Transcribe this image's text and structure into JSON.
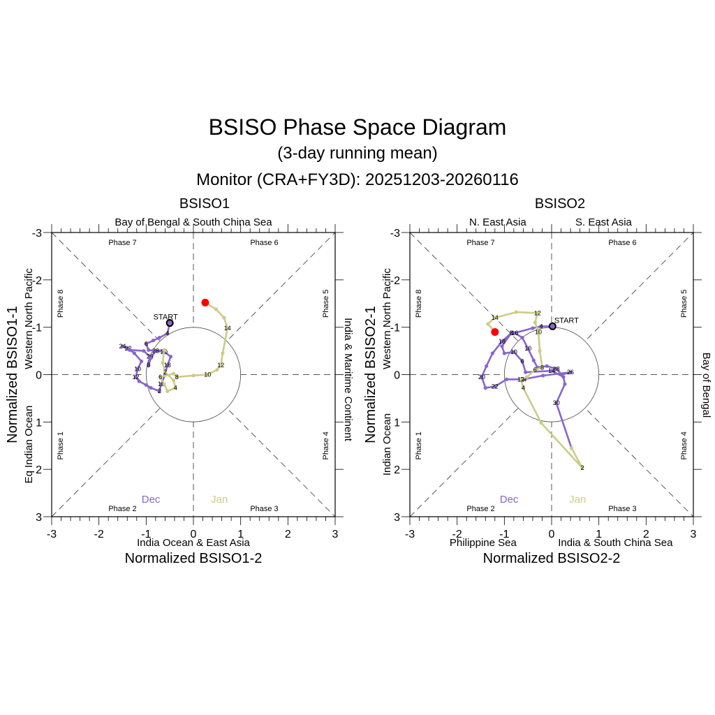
{
  "header": {
    "title": "BSISO Phase Space Diagram",
    "subtitle": "(3-day running mean)",
    "monitor": "Monitor (CRA+FY3D): 20251203-20260116"
  },
  "colors": {
    "dec": "#8866cc",
    "jan": "#cccc88",
    "end": "#ff0000",
    "start": "#000000"
  },
  "chart_data": [
    {
      "type": "scatter",
      "title": "BSISO1",
      "xlabel": "Normalized BSISO1-2",
      "ylabel": "Normalized BSISO1-1",
      "xlim": [
        -3,
        3
      ],
      "ylim": [
        -3,
        3
      ],
      "y_inverted": true,
      "xticks": [
        "-3",
        "-2",
        "-1",
        "0",
        "1",
        "2",
        "3"
      ],
      "yticks": [
        "-3",
        "-2",
        "-1",
        "0",
        "1",
        "2",
        "3"
      ],
      "region_labels": {
        "top": "Bay of Bengal & South China Sea",
        "bottom": "India Ocean & East Asia",
        "left_upper": "Western North Pacific",
        "left_lower": "Eq Indian Ocean",
        "right": "India & Maritime Continent"
      },
      "phase_labels": [
        "Phase 1",
        "Phase 2",
        "Phase 3",
        "Phase 4",
        "Phase 5",
        "Phase 6",
        "Phase 7",
        "Phase 8"
      ],
      "legend": [
        "Dec",
        "Jan"
      ],
      "start_label": "START",
      "series": [
        {
          "name": "Dec",
          "points": [
            [
              -0.5,
              -1.09
            ],
            [
              -0.55,
              -0.87
            ],
            [
              -0.72,
              -0.78
            ],
            [
              -0.85,
              -0.72
            ],
            [
              -1.0,
              -0.65
            ],
            [
              -0.95,
              -0.52
            ],
            [
              -0.8,
              -0.5
            ],
            [
              -0.62,
              -0.48
            ],
            [
              -0.48,
              -0.38
            ],
            [
              -0.55,
              -0.2
            ],
            [
              -0.6,
              0.0
            ],
            [
              -0.68,
              0.2
            ],
            [
              -0.72,
              0.35
            ],
            [
              -0.9,
              0.28
            ],
            [
              -1.0,
              0.22
            ],
            [
              -1.15,
              0.14
            ],
            [
              -1.22,
              0.05
            ],
            [
              -1.18,
              -0.12
            ],
            [
              -1.1,
              -0.28
            ],
            [
              -1.25,
              -0.45
            ],
            [
              -1.38,
              -0.55
            ],
            [
              -1.5,
              -0.6
            ],
            [
              -1.35,
              -0.52
            ],
            [
              -1.05,
              -0.5
            ],
            [
              -0.92,
              -0.38
            ],
            [
              -0.95,
              -0.2
            ],
            [
              -0.9,
              -0.35
            ],
            [
              -0.8,
              -0.5
            ],
            [
              -0.62,
              -0.52
            ]
          ],
          "labels": {
            "1": "4",
            "4": "6",
            "7": "20",
            "9": "18",
            "11": "16",
            "12": "2",
            "16": "12",
            "17": "10",
            "20": "22",
            "21": "24",
            "24": "26",
            "25": "8",
            "27": "28"
          }
        },
        {
          "name": "Jan",
          "points": [
            [
              -0.62,
              -0.52
            ],
            [
              -0.65,
              -0.25
            ],
            [
              -0.6,
              -0.05
            ],
            [
              -0.42,
              0.12
            ],
            [
              -0.38,
              0.28
            ],
            [
              -0.55,
              0.35
            ],
            [
              -0.62,
              0.2
            ],
            [
              -0.7,
              0.05
            ],
            [
              -0.42,
              -0.02
            ],
            [
              -0.35,
              0.05
            ],
            [
              0.0,
              0.02
            ],
            [
              0.3,
              0.0
            ],
            [
              0.5,
              -0.1
            ],
            [
              0.58,
              -0.2
            ],
            [
              0.62,
              -0.45
            ],
            [
              0.72,
              -0.98
            ],
            [
              0.65,
              -1.2
            ],
            [
              0.48,
              -1.38
            ],
            [
              0.25,
              -1.52
            ]
          ],
          "labels": {
            "2": "2",
            "4": "4",
            "7": "6",
            "9": "8",
            "11": "10",
            "13": "12",
            "15": "14"
          }
        }
      ]
    },
    {
      "type": "scatter",
      "title": "BSISO2",
      "xlabel": "Normalized BSISO2-2",
      "ylabel": "Normalized BSISO2-1",
      "xlim": [
        -3,
        3
      ],
      "ylim": [
        -3,
        3
      ],
      "y_inverted": true,
      "xticks": [
        "-3",
        "-2",
        "-1",
        "0",
        "1",
        "2",
        "3"
      ],
      "yticks": [
        "-3",
        "-2",
        "-1",
        "0",
        "1",
        "2",
        "3"
      ],
      "region_labels": {
        "top_left": "N. East Asia",
        "top_right": "S. East Asia",
        "bottom_left": "Philippine Sea",
        "bottom_right": "India & South China Sea",
        "left_upper": "Western North Pacific",
        "left_lower": "Indian Ocean",
        "right": "Bay of Bengal"
      },
      "phase_labels": [
        "Phase 1",
        "Phase 2",
        "Phase 3",
        "Phase 4",
        "Phase 5",
        "Phase 6",
        "Phase 7",
        "Phase 8"
      ],
      "legend": [
        "Dec",
        "Jan"
      ],
      "start_label": "START",
      "series": [
        {
          "name": "Dec",
          "points": [
            [
              0.02,
              -1.02
            ],
            [
              -0.22,
              -1.02
            ],
            [
              -0.4,
              -0.98
            ],
            [
              -0.78,
              -0.88
            ],
            [
              -0.62,
              -0.78
            ],
            [
              -0.5,
              -0.55
            ],
            [
              -0.38,
              -0.3
            ],
            [
              -0.3,
              -0.15
            ],
            [
              -0.1,
              -0.18
            ],
            [
              0.1,
              -0.12
            ],
            [
              0.22,
              0.0
            ],
            [
              0.4,
              -0.05
            ],
            [
              -0.18,
              0.02
            ],
            [
              -0.6,
              0.1
            ],
            [
              -0.95,
              0.1
            ],
            [
              -1.2,
              0.25
            ],
            [
              -1.4,
              0.28
            ],
            [
              -1.48,
              0.05
            ],
            [
              -1.38,
              -0.18
            ],
            [
              -1.25,
              -0.45
            ],
            [
              -1.05,
              -0.7
            ],
            [
              -0.85,
              -0.88
            ],
            [
              -1.05,
              -0.6
            ],
            [
              -1.0,
              -0.45
            ],
            [
              -0.8,
              -0.48
            ],
            [
              -0.62,
              -0.28
            ],
            [
              -0.55,
              -0.05
            ],
            [
              0.0,
              -0.08
            ],
            [
              0.25,
              0.05
            ],
            [
              0.28,
              0.2
            ],
            [
              0.1,
              0.6
            ],
            [
              0.42,
              1.55
            ]
          ],
          "labels": {
            "1": "4",
            "3": "16",
            "5": "10",
            "9": "28",
            "11": "26",
            "13": "24",
            "15": "22",
            "17": "20",
            "20": "18",
            "21": "8",
            "24": "10",
            "25": "6",
            "27": "14",
            "30": "30"
          }
        },
        {
          "name": "Jan",
          "points": [
            [
              0.42,
              1.55
            ],
            [
              0.65,
              1.97
            ],
            [
              -0.22,
              1.02
            ],
            [
              -0.6,
              0.28
            ],
            [
              -0.65,
              0.1
            ],
            [
              -0.52,
              0.05
            ],
            [
              -0.35,
              -0.1
            ],
            [
              -0.2,
              -0.15
            ],
            [
              -0.25,
              -0.5
            ],
            [
              -0.28,
              -0.9
            ],
            [
              -0.35,
              -1.1
            ],
            [
              -0.3,
              -1.3
            ],
            [
              -0.75,
              -1.32
            ],
            [
              -1.2,
              -1.2
            ],
            [
              -1.35,
              -1.07
            ],
            [
              -1.2,
              -0.9
            ]
          ],
          "labels": {
            "1": "2",
            "3": "4",
            "4": "12",
            "6": "6",
            "7": "8",
            "9": "10",
            "11": "12",
            "13": "14"
          }
        }
      ]
    }
  ]
}
